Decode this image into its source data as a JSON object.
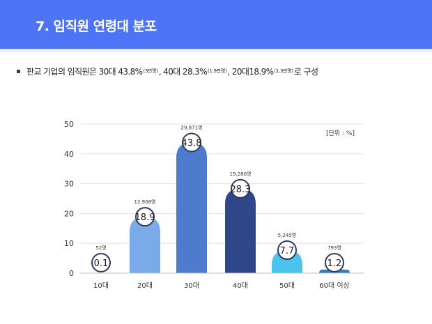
{
  "header": {
    "title": "7. 임직원 연령대 분포",
    "bar_color": "#4d74f5"
  },
  "summary": {
    "bullet_icon": "square-bullet-icon",
    "parts": [
      {
        "text": "판교 기업의 임직원은 30대 43.8%",
        "size": "big"
      },
      {
        "text": "(3만명)",
        "size": "small"
      },
      {
        "text": ", 40대 28.3%",
        "size": "big"
      },
      {
        "text": "(1.9만명)",
        "size": "small"
      },
      {
        "text": ", 20대18.9%",
        "size": "big"
      },
      {
        "text": "(1.3만명)",
        "size": "small"
      },
      {
        "text": " 로 구성",
        "size": "big"
      }
    ]
  },
  "chart_data": {
    "type": "bar",
    "unit_label": "[단위 : %]",
    "categories": [
      "10대",
      "20대",
      "30대",
      "40대",
      "50대",
      "60대 이상"
    ],
    "values": [
      0.1,
      18.9,
      43.8,
      28.3,
      7.7,
      1.2
    ],
    "value_labels": [
      "0.1",
      "18.9",
      "43.8",
      "28.3",
      "7.7",
      "1.2"
    ],
    "counts": [
      "52명",
      "12,908명",
      "29,871명",
      "19,280명",
      "5,245명",
      "793명"
    ],
    "colors": [
      "#5b86d9",
      "#7aabe8",
      "#4f7bcf",
      "#2f4788",
      "#4cc2ef",
      "#2f7fbf"
    ],
    "ylim": [
      0,
      50
    ],
    "yticks": [
      0,
      10,
      20,
      30,
      40,
      50
    ],
    "grid": true,
    "xlabel": "",
    "ylabel": ""
  }
}
